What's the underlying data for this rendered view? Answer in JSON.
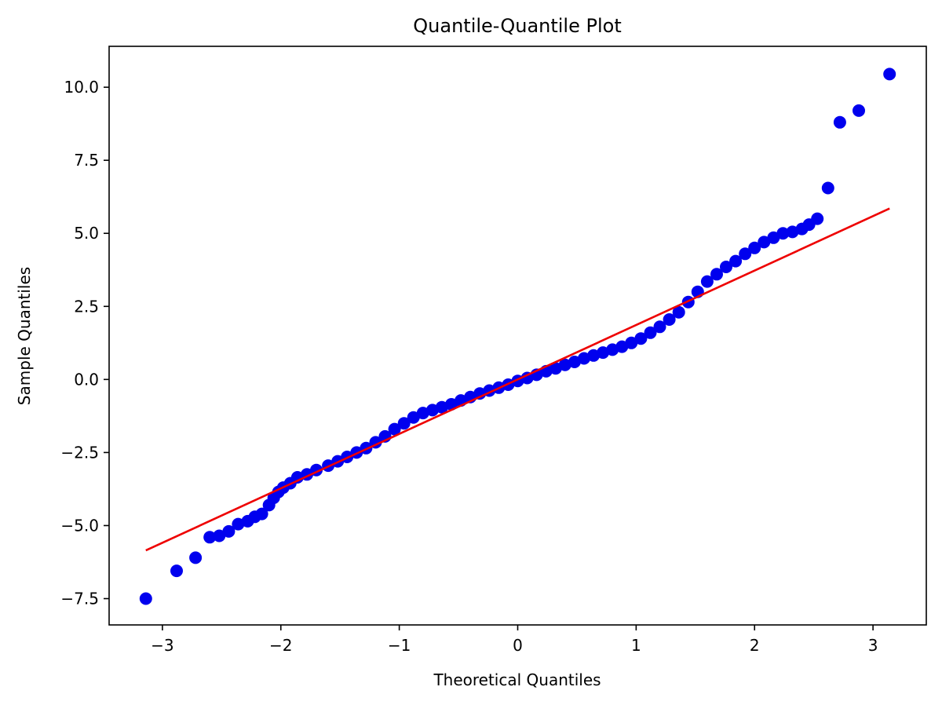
{
  "chart_data": {
    "type": "scatter",
    "title": "Quantile-Quantile Plot",
    "xlabel": "Theoretical Quantiles",
    "ylabel": "Sample Quantiles",
    "xlim": [
      -3.45,
      3.45
    ],
    "ylim": [
      -8.4,
      11.4
    ],
    "grid": false,
    "legend": "none",
    "x_ticks": [
      {
        "value": -3,
        "label": "−3"
      },
      {
        "value": -2,
        "label": "−2"
      },
      {
        "value": -1,
        "label": "−1"
      },
      {
        "value": 0,
        "label": "0"
      },
      {
        "value": 1,
        "label": "1"
      },
      {
        "value": 2,
        "label": "2"
      },
      {
        "value": 3,
        "label": "3"
      }
    ],
    "y_ticks": [
      {
        "value": -7.5,
        "label": "−7.5"
      },
      {
        "value": -5.0,
        "label": "−5.0"
      },
      {
        "value": -2.5,
        "label": "−2.5"
      },
      {
        "value": 0.0,
        "label": "0.0"
      },
      {
        "value": 2.5,
        "label": "2.5"
      },
      {
        "value": 5.0,
        "label": "5.0"
      },
      {
        "value": 7.5,
        "label": "7.5"
      },
      {
        "value": 10.0,
        "label": "10.0"
      }
    ],
    "series": [
      {
        "color": "#0000ee",
        "points": [
          [
            -3.14,
            -7.5
          ],
          [
            -2.88,
            -6.55
          ],
          [
            -2.72,
            -6.1
          ],
          [
            -2.6,
            -5.4
          ],
          [
            -2.52,
            -5.35
          ],
          [
            -2.44,
            -5.2
          ],
          [
            -2.36,
            -4.95
          ],
          [
            -2.28,
            -4.85
          ],
          [
            -2.22,
            -4.7
          ],
          [
            -2.16,
            -4.6
          ],
          [
            -2.1,
            -4.3
          ],
          [
            -2.06,
            -4.05
          ],
          [
            -2.02,
            -3.85
          ],
          [
            -1.98,
            -3.7
          ],
          [
            -1.92,
            -3.55
          ],
          [
            -1.86,
            -3.35
          ],
          [
            -1.78,
            -3.25
          ],
          [
            -1.7,
            -3.1
          ],
          [
            -1.6,
            -2.95
          ],
          [
            -1.52,
            -2.8
          ],
          [
            -1.44,
            -2.65
          ],
          [
            -1.36,
            -2.5
          ],
          [
            -1.28,
            -2.35
          ],
          [
            -1.2,
            -2.15
          ],
          [
            -1.12,
            -1.95
          ],
          [
            -1.04,
            -1.7
          ],
          [
            -0.96,
            -1.5
          ],
          [
            -0.88,
            -1.3
          ],
          [
            -0.8,
            -1.15
          ],
          [
            -0.72,
            -1.05
          ],
          [
            -0.64,
            -0.95
          ],
          [
            -0.56,
            -0.85
          ],
          [
            -0.48,
            -0.72
          ],
          [
            -0.4,
            -0.6
          ],
          [
            -0.32,
            -0.48
          ],
          [
            -0.24,
            -0.38
          ],
          [
            -0.16,
            -0.28
          ],
          [
            -0.08,
            -0.18
          ],
          [
            0.0,
            -0.05
          ],
          [
            0.08,
            0.05
          ],
          [
            0.16,
            0.16
          ],
          [
            0.24,
            0.28
          ],
          [
            0.32,
            0.38
          ],
          [
            0.4,
            0.5
          ],
          [
            0.48,
            0.6
          ],
          [
            0.56,
            0.72
          ],
          [
            0.64,
            0.82
          ],
          [
            0.72,
            0.92
          ],
          [
            0.8,
            1.02
          ],
          [
            0.88,
            1.12
          ],
          [
            0.96,
            1.25
          ],
          [
            1.04,
            1.4
          ],
          [
            1.12,
            1.6
          ],
          [
            1.2,
            1.8
          ],
          [
            1.28,
            2.05
          ],
          [
            1.36,
            2.3
          ],
          [
            1.44,
            2.65
          ],
          [
            1.52,
            3.0
          ],
          [
            1.6,
            3.35
          ],
          [
            1.68,
            3.6
          ],
          [
            1.76,
            3.85
          ],
          [
            1.84,
            4.05
          ],
          [
            1.92,
            4.3
          ],
          [
            2.0,
            4.5
          ],
          [
            2.08,
            4.7
          ],
          [
            2.16,
            4.85
          ],
          [
            2.24,
            5.0
          ],
          [
            2.32,
            5.05
          ],
          [
            2.4,
            5.15
          ],
          [
            2.46,
            5.3
          ],
          [
            2.53,
            5.5
          ],
          [
            2.62,
            6.55
          ],
          [
            2.72,
            8.8
          ],
          [
            2.88,
            9.2
          ],
          [
            3.14,
            10.45
          ]
        ]
      },
      {
        "color": "#ee0000",
        "line": [
          [
            -3.14,
            -5.85
          ],
          [
            3.14,
            5.85
          ]
        ]
      }
    ]
  }
}
